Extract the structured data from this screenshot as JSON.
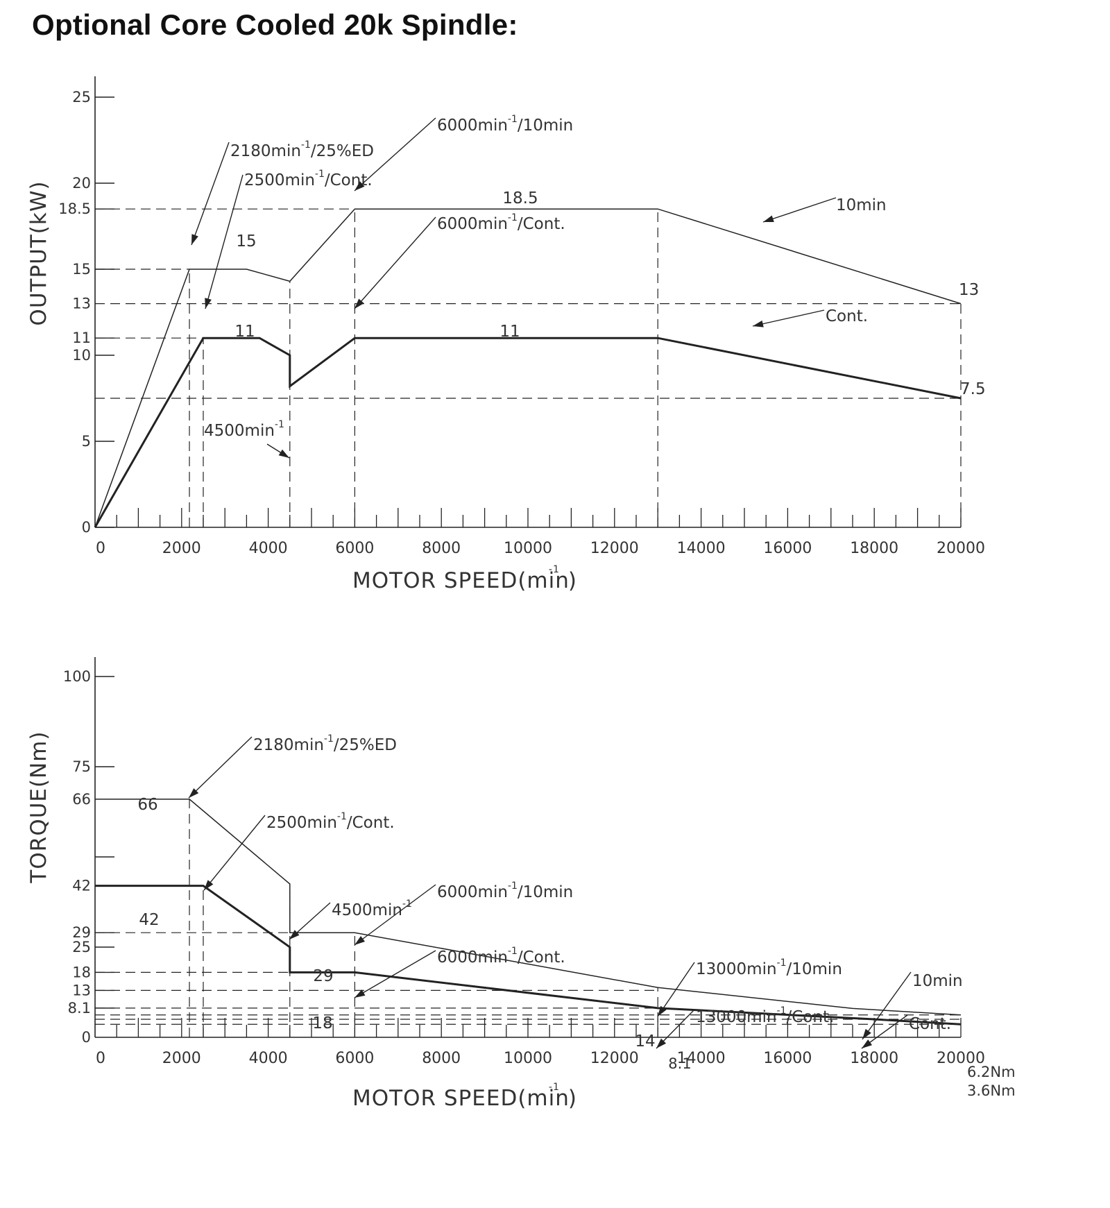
{
  "title": "Optional Core Cooled 20k Spindle:",
  "chart_data": [
    {
      "type": "line",
      "ylabel": "OUTPUT(kW)",
      "xlabel": "MOTOR  SPEED(min",
      "xlabel_sup": "-1",
      "xlabel_close": ")",
      "xlim": [
        0,
        20000
      ],
      "ylim": [
        0,
        25
      ],
      "x_ticks": [
        0,
        2000,
        4000,
        6000,
        8000,
        10000,
        12000,
        14000,
        16000,
        18000,
        20000
      ],
      "y_ticks": [
        "0",
        "5",
        "10",
        "11",
        "13",
        "15",
        "18.5",
        "20",
        "25"
      ],
      "series": [
        {
          "name": "10min",
          "points": [
            [
              0,
              0
            ],
            [
              2180,
              15
            ],
            [
              3500,
              15
            ],
            [
              4500,
              14.3
            ],
            [
              6000,
              18.5
            ],
            [
              13000,
              18.5
            ],
            [
              20000,
              13
            ]
          ]
        },
        {
          "name": "Cont.",
          "points": [
            [
              0,
              0
            ],
            [
              2500,
              11
            ],
            [
              3800,
              11
            ],
            [
              4500,
              10
            ],
            [
              4500,
              8.2
            ],
            [
              6000,
              11
            ],
            [
              13000,
              11
            ],
            [
              20000,
              7.5
            ]
          ]
        }
      ],
      "annotations": [
        "2180min/25%ED",
        "2500min/Cont.",
        "6000min/10min",
        "6000min/Cont.",
        "4500min",
        "10min",
        "Cont.",
        "15",
        "11",
        "18.5",
        "11",
        "13",
        "7.5"
      ]
    },
    {
      "type": "line",
      "ylabel": "TORQUE(Nm)",
      "xlabel": "MOTOR  SPEED(min",
      "xlabel_sup": "-1",
      "xlabel_close": ")",
      "xlim": [
        0,
        20000
      ],
      "ylim": [
        0,
        100
      ],
      "x_ticks": [
        0,
        2000,
        4000,
        6000,
        8000,
        10000,
        12000,
        14000,
        16000,
        18000,
        20000
      ],
      "y_ticks": [
        "0",
        "8.1",
        "13",
        "18",
        "25",
        "29",
        "42",
        "66",
        "75",
        "100"
      ],
      "series": [
        {
          "name": "10min",
          "points": [
            [
              0,
              66
            ],
            [
              2180,
              66
            ],
            [
              4500,
              42.5
            ],
            [
              4500,
              29
            ],
            [
              6000,
              29
            ],
            [
              13000,
              13.8
            ],
            [
              17500,
              8
            ],
            [
              20000,
              6.2
            ]
          ]
        },
        {
          "name": "Cont.",
          "points": [
            [
              0,
              42
            ],
            [
              2500,
              42
            ],
            [
              4500,
              25
            ],
            [
              4500,
              18
            ],
            [
              6000,
              18
            ],
            [
              13000,
              8.1
            ],
            [
              18000,
              5
            ],
            [
              20000,
              3.6
            ]
          ]
        }
      ],
      "annotations": [
        "2180min/25%ED",
        "2500min/Cont.",
        "4500min",
        "6000min/10min",
        "6000min/Cont.",
        "13000min/10min",
        "13000min/Cont.",
        "10min",
        "Cont.",
        "66",
        "42",
        "29",
        "18",
        "14",
        "8.1",
        "6.2Nm",
        "3.6Nm"
      ]
    }
  ]
}
